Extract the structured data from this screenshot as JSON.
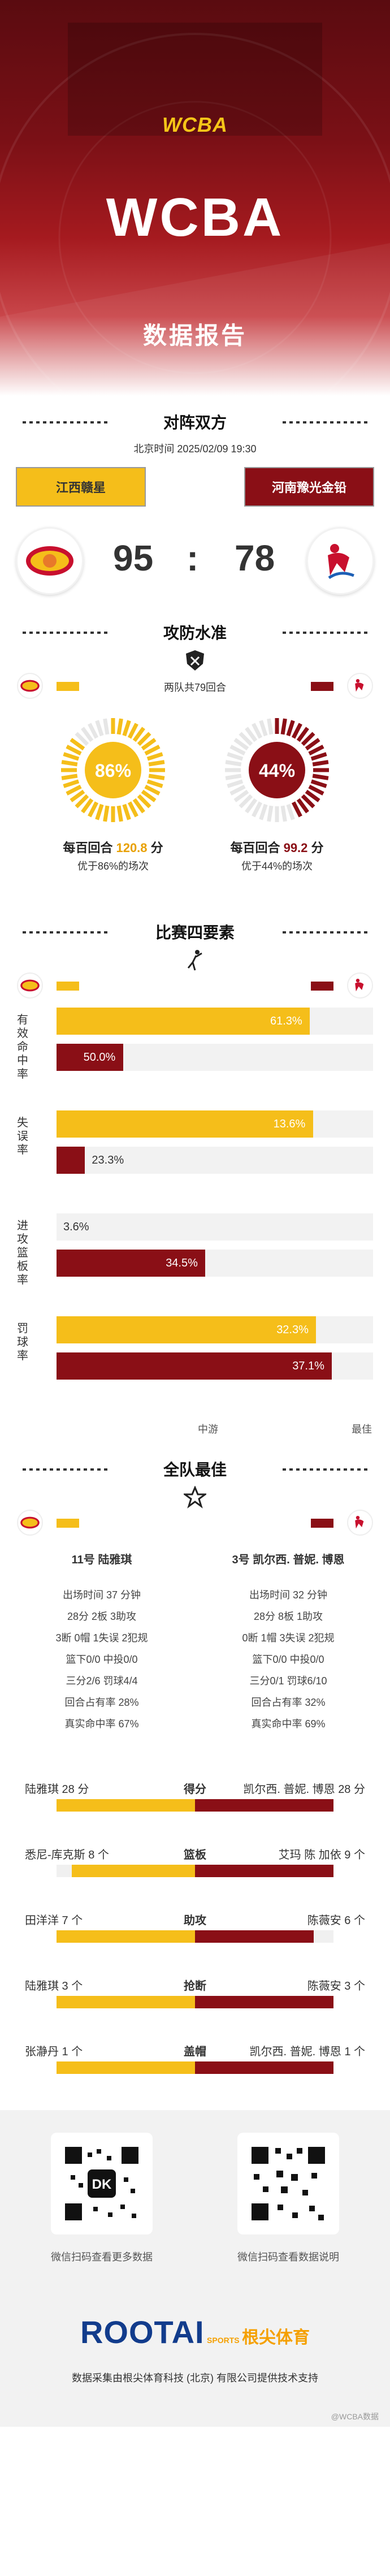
{
  "hero": {
    "logo_text": "WCBA",
    "title": "WCBA",
    "subtitle": "数据报告"
  },
  "match": {
    "section_title": "对阵双方",
    "time": "北京时间 2025/02/09 19:30",
    "home_name": "江西赣星",
    "away_name": "河南豫光金铅",
    "home_score": "95",
    "colon": ":",
    "away_score": "78"
  },
  "efficiency": {
    "section_title": "攻防水准",
    "possessions": "两队共79回合",
    "home_pct": "86%",
    "away_pct": "44%",
    "home_pct_value": 0.86,
    "away_pct_value": 0.44,
    "home_line_prefix": "每百回合",
    "home_value": "120.8",
    "home_unit": "分",
    "away_line_prefix": "每百回合",
    "away_value": "99.2",
    "away_unit": "分",
    "home_sub": "优于86%的场次",
    "away_sub": "优于44%的场次"
  },
  "factors": {
    "section_title": "比赛四要素",
    "rows": [
      {
        "label": "有效命中率",
        "home": "61.3%",
        "away": "50.0%",
        "home_v": 61.3,
        "away_v": 50.0,
        "home_fill": 0.8,
        "away_fill": 0.21
      },
      {
        "label": "失误率",
        "home": "13.6%",
        "away": "23.3%",
        "home_v": 13.6,
        "away_v": 23.3,
        "home_fill": 0.81,
        "away_fill": 0.09
      },
      {
        "label": "进攻篮板率",
        "home": "3.6%",
        "away": "34.5%",
        "home_v": 3.6,
        "away_v": 34.5,
        "home_fill": 0.0,
        "away_fill": 0.47
      },
      {
        "label": "罚球率",
        "home": "32.3%",
        "away": "37.1%",
        "home_v": 32.3,
        "away_v": 37.1,
        "home_fill": 0.82,
        "away_fill": 0.87
      }
    ],
    "axis_mid": "中游",
    "axis_max": "最佳"
  },
  "best": {
    "section_title": "全队最佳",
    "home_player": "11号 陆雅琪",
    "away_player": "3号 凯尔西. 普妮. 博恩",
    "home_stats": [
      "出场时间 37 分钟",
      "28分  2板  3助攻",
      "3断  0帽  1失误  2犯规",
      "篮下0/0   中投0/0",
      "三分2/6   罚球4/4",
      "回合占有率 28%",
      "真实命中率 67%"
    ],
    "away_stats": [
      "出场时间 32 分钟",
      "28分  8板  1助攻",
      "0断  1帽  3失误  2犯规",
      "篮下0/0   中投0/0",
      "三分0/1   罚球6/10",
      "回合占有率 32%",
      "真实命中率 69%"
    ],
    "categories": [
      {
        "name": "得分",
        "home": "陆雅琪 28 分",
        "away": "凯尔西. 普妮. 博恩 28 分",
        "home_v": 28,
        "away_v": 28
      },
      {
        "name": "篮板",
        "home": "悉尼-库克斯 8 个",
        "away": "艾玛 陈 加依 9 个",
        "home_v": 8,
        "away_v": 9
      },
      {
        "name": "助攻",
        "home": "田洋洋 7 个",
        "away": "陈薇安 6 个",
        "home_v": 7,
        "away_v": 6
      },
      {
        "name": "抢断",
        "home": "陆雅琪 3 个",
        "away": "陈薇安 3 个",
        "home_v": 3,
        "away_v": 3
      },
      {
        "name": "盖帽",
        "home": "张瀞丹 1 个",
        "away": "凯尔西. 普妮. 博恩 1 个",
        "home_v": 1,
        "away_v": 1
      }
    ]
  },
  "footer": {
    "qr_left_caption": "微信扫码查看更多数据",
    "qr_right_caption": "微信扫码查看数据说明",
    "brand_en": "ROOTAI",
    "brand_sports": "SPORTS",
    "brand_cn": "根尖体育",
    "credit": "数据采集由根尖体育科技 (北京) 有限公司提供技术支持",
    "watermark": "@WCBA数据"
  },
  "colors": {
    "home": "#f5be1a",
    "away": "#8a0f16",
    "brand_blue": "#123c8c",
    "brand_orange": "#f5a000"
  }
}
